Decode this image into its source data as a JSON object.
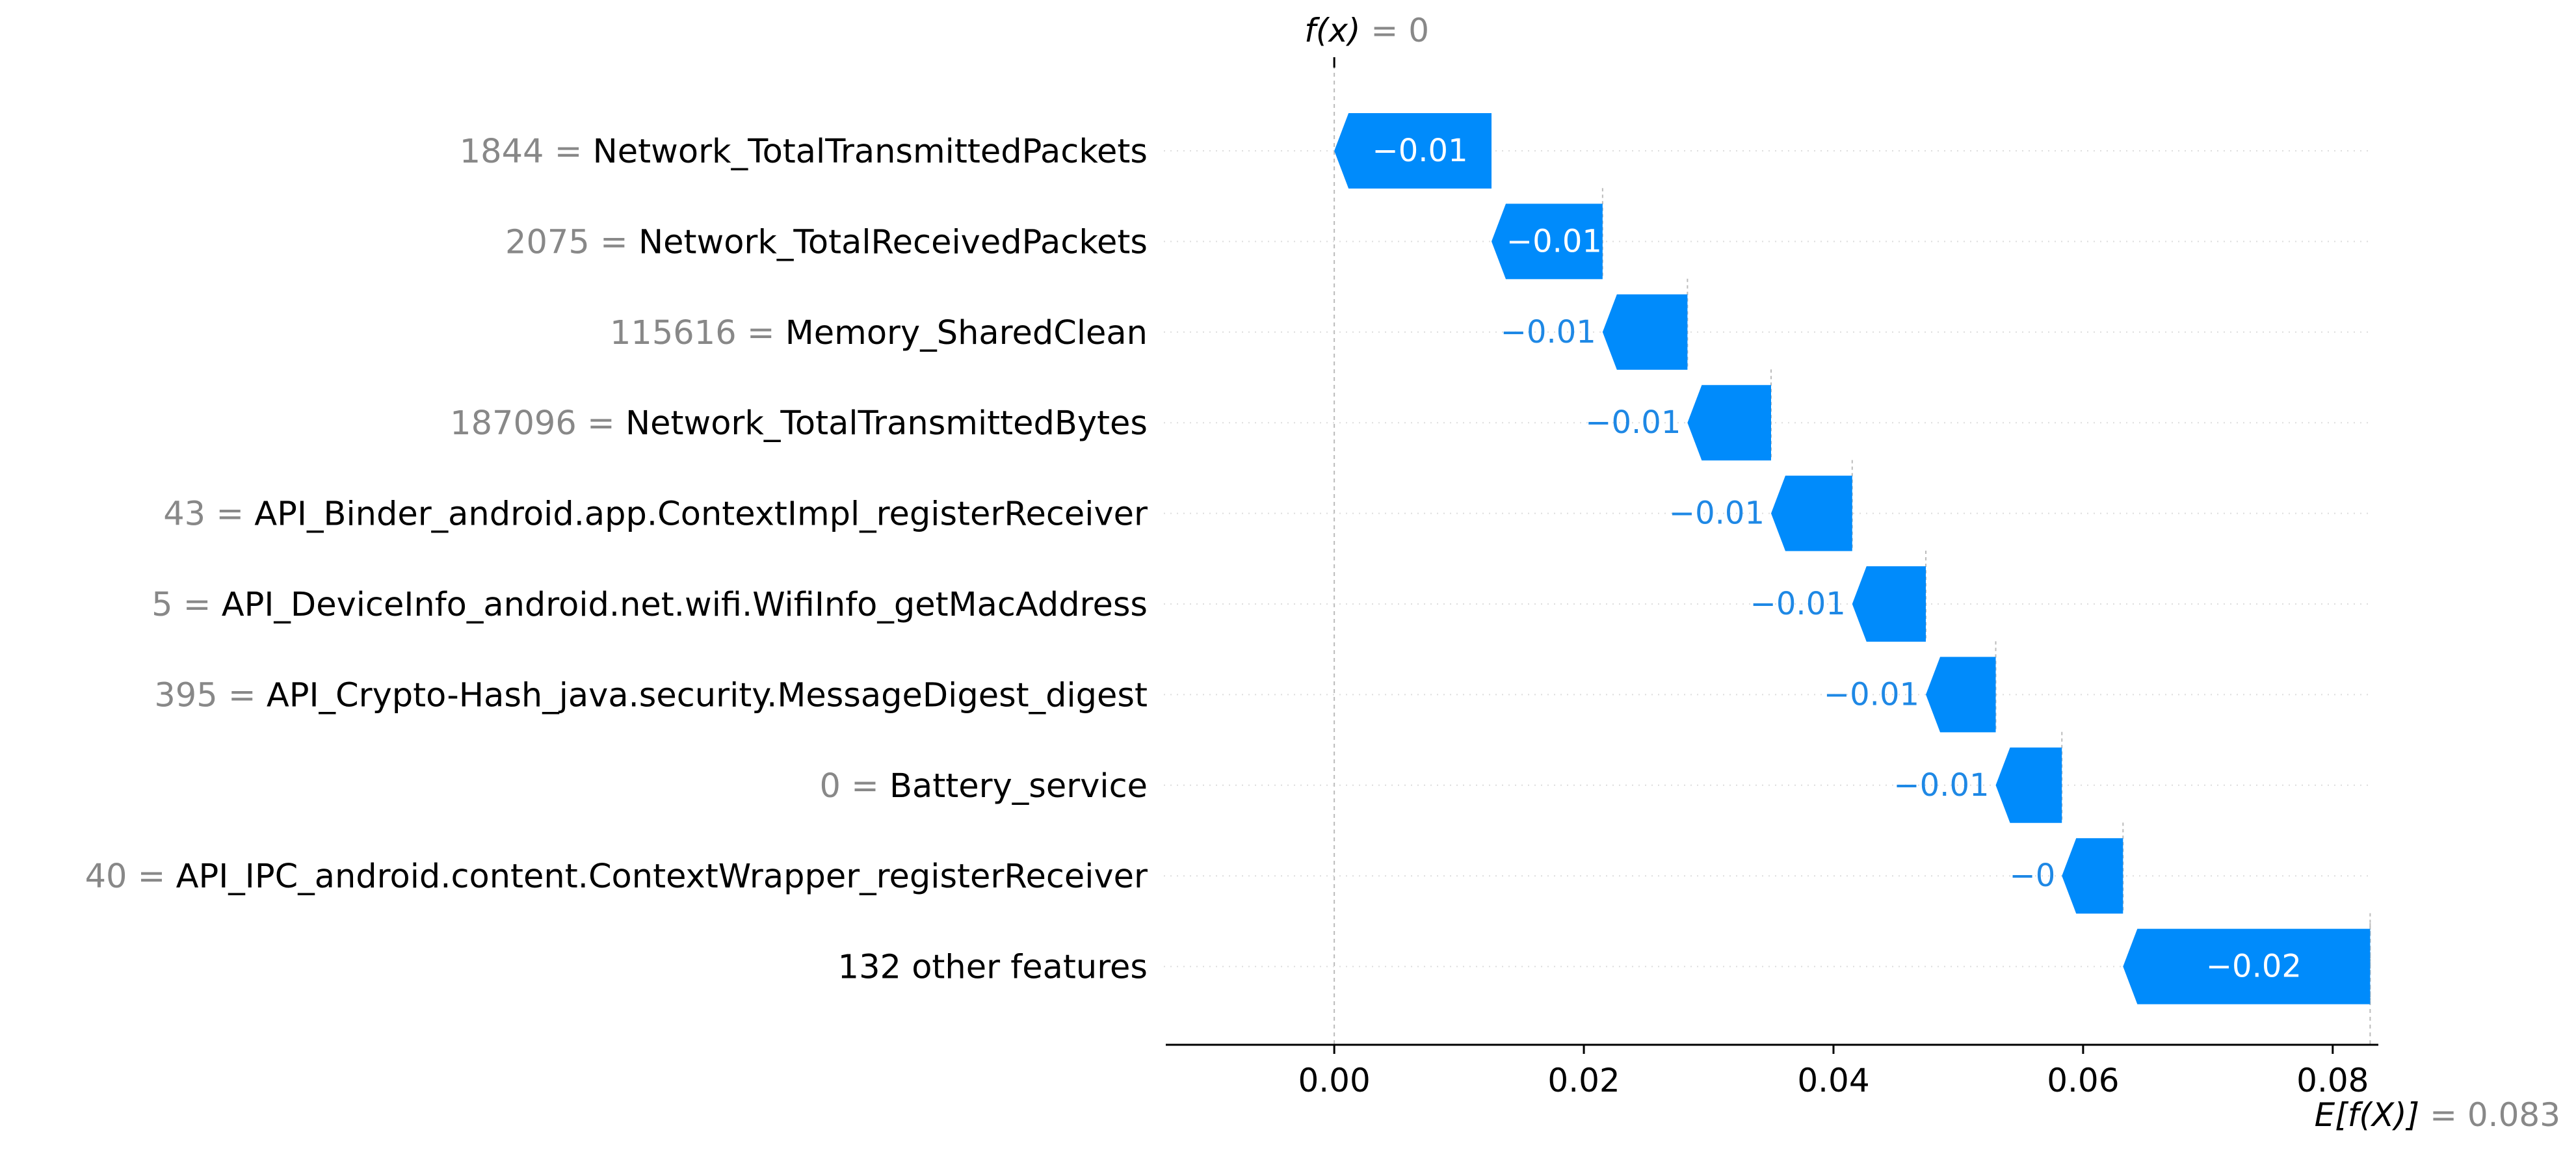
{
  "chart_data": {
    "type": "bar",
    "subtype": "waterfall",
    "xlim": [
      -0.0135,
      0.0835
    ],
    "xticks": [
      "0.00",
      "0.02",
      "0.04",
      "0.06",
      "0.08"
    ],
    "xtick_values": [
      0.0,
      0.02,
      0.04,
      0.06,
      0.08
    ],
    "base_value": 0.083,
    "output_value": 0,
    "top_annotation": {
      "func": "f(x)",
      "value": "0"
    },
    "bottom_annotation": {
      "func": "E[f(X)]",
      "value": "0.083"
    },
    "grid": true,
    "bar_color": "#008bfb",
    "bar_label_color_outside": "#1e88e5",
    "features": [
      {
        "value": "1844",
        "name": "Network_TotalTransmittedPackets",
        "label": "−0.01",
        "start": 0.0126,
        "end": 0.0
      },
      {
        "value": "2075",
        "name": "Network_TotalReceivedPackets",
        "label": "−0.01",
        "start": 0.0215,
        "end": 0.0126
      },
      {
        "value": "115616",
        "name": "Memory_SharedClean",
        "label": "−0.01",
        "start": 0.0283,
        "end": 0.0215
      },
      {
        "value": "187096",
        "name": "Network_TotalTransmittedBytes",
        "label": "−0.01",
        "start": 0.035,
        "end": 0.0283
      },
      {
        "value": "43",
        "name": "API_Binder_android.app.ContextImpl_registerReceiver",
        "label": "−0.01",
        "start": 0.0415,
        "end": 0.035
      },
      {
        "value": "5",
        "name": "API_DeviceInfo_android.net.wifi.WifiInfo_getMacAddress",
        "label": "−0.01",
        "start": 0.0474,
        "end": 0.0415
      },
      {
        "value": "395",
        "name": "API_Crypto-Hash_java.security.MessageDigest_digest",
        "label": "−0.01",
        "start": 0.053,
        "end": 0.0474
      },
      {
        "value": "0",
        "name": "Battery_service",
        "label": "−0.01",
        "start": 0.0583,
        "end": 0.053
      },
      {
        "value": "40",
        "name": "API_IPC_android.content.ContextWrapper_registerReceiver",
        "label": "−0",
        "start": 0.0632,
        "end": 0.0583
      },
      {
        "value": "",
        "name": "132 other features",
        "label": "−0.02",
        "start": 0.083,
        "end": 0.0632
      }
    ]
  }
}
